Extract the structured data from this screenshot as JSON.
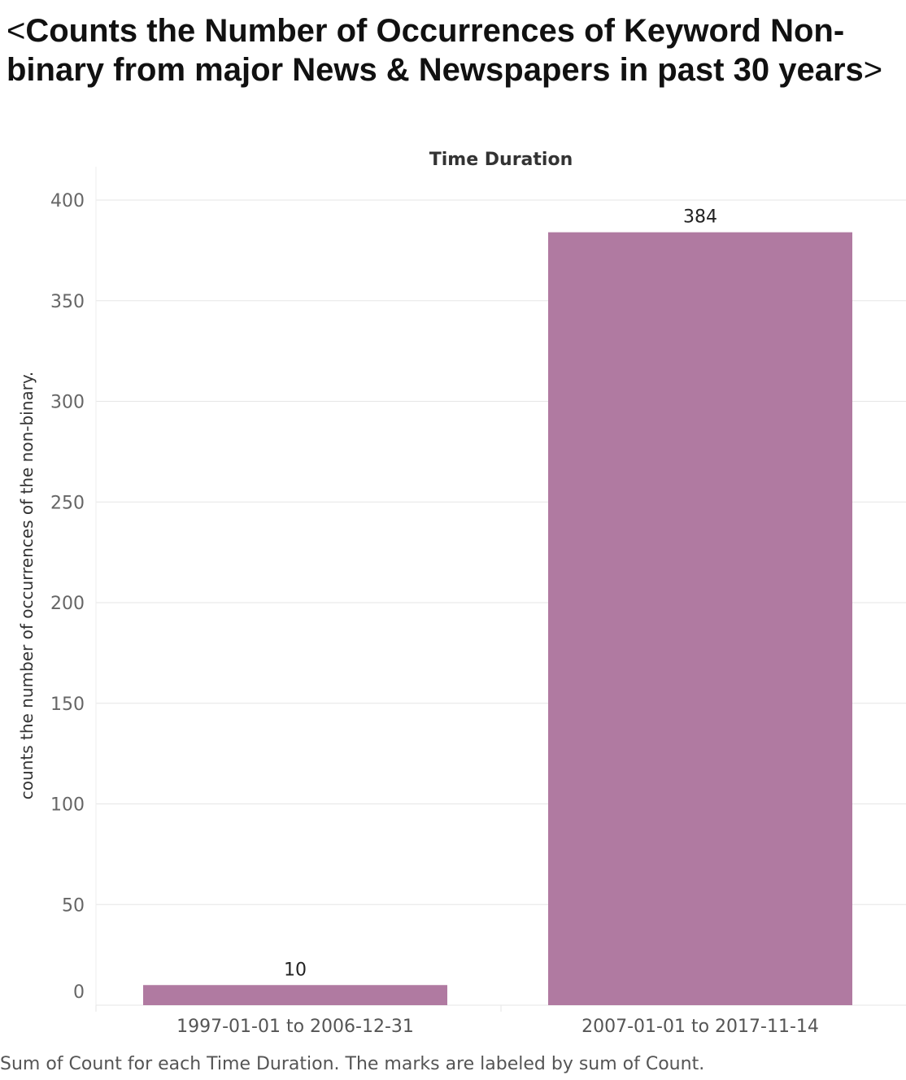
{
  "chart_data": {
    "type": "bar",
    "title_prefix": "<",
    "title": "Counts the Number of Occurrences of Keyword Non-binary from major News & Newspapers in past 30 years",
    "title_suffix": ">",
    "column_header": "Time Duration",
    "xlabel": "",
    "ylabel": "counts the number of occurrences of the non-binary.",
    "categories": [
      "1997-01-01 to 2006-12-31",
      "2007-01-01 to 2017-11-14"
    ],
    "values": [
      10,
      384
    ],
    "data_labels": [
      "10",
      "384"
    ],
    "ylim": [
      0,
      400
    ],
    "yticks": [
      0,
      50,
      100,
      150,
      200,
      250,
      300,
      350,
      400
    ],
    "grid": true,
    "bar_color": "#b07aa1",
    "caption": "Sum of Count for each Time Duration.  The marks are labeled by sum of Count."
  }
}
